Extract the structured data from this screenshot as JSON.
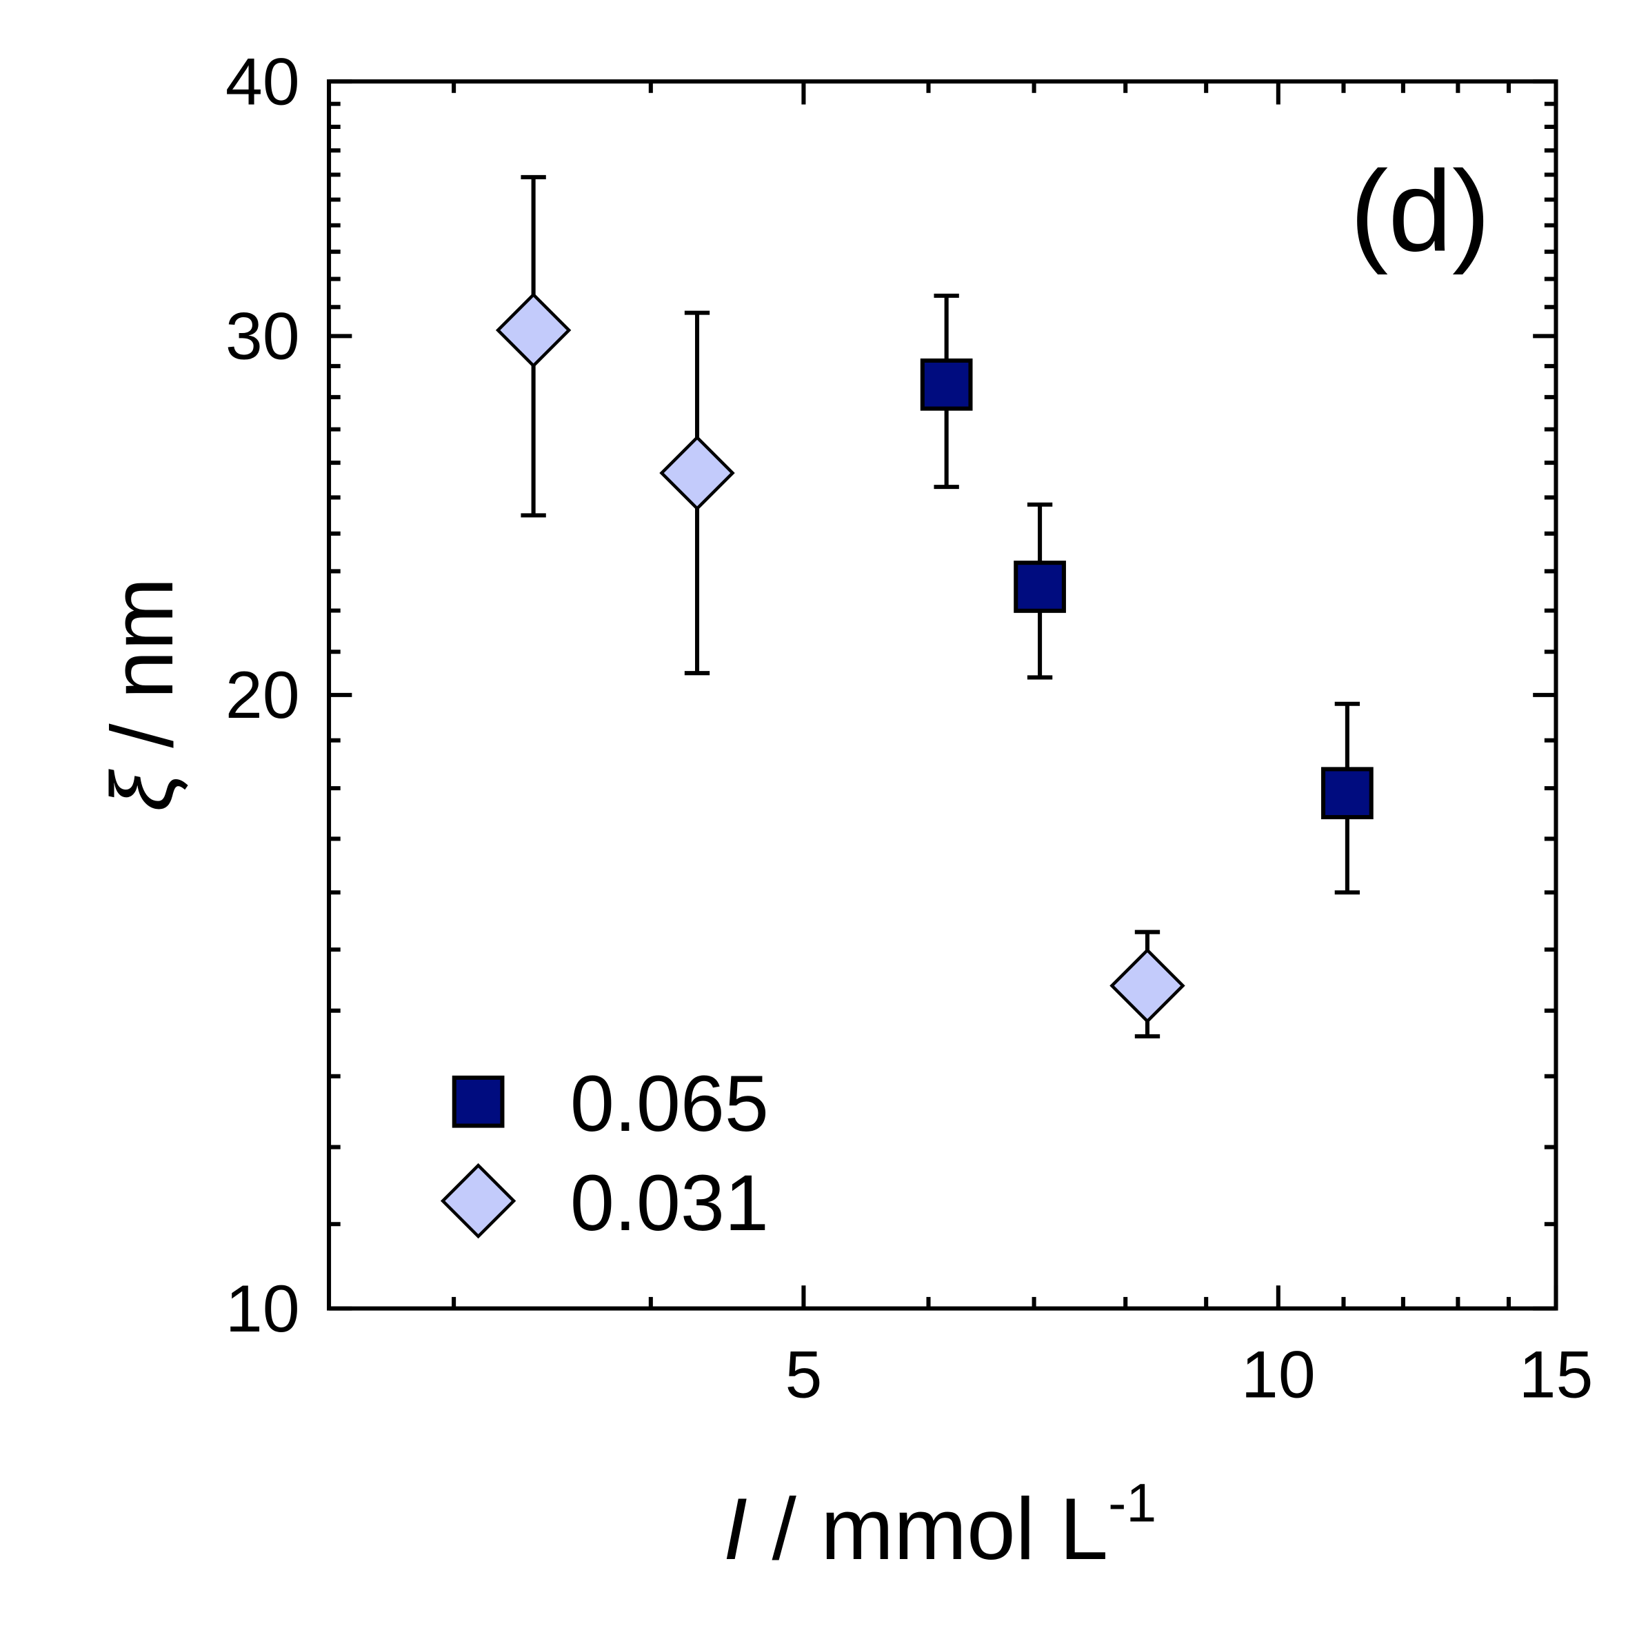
{
  "chart_data": {
    "type": "scatter",
    "annotation": "(d)",
    "xlabel_parts": [
      "I",
      " / mmol L",
      "-1"
    ],
    "ylabel_parts": [
      "ξ",
      " / nm"
    ],
    "xlog": true,
    "ylog": true,
    "xlim": [
      2.5,
      15
    ],
    "ylim": [
      10,
      40
    ],
    "xticks": [
      5,
      10,
      15
    ],
    "yticks": [
      10,
      20,
      30,
      40
    ],
    "xminorticks": [
      3,
      4,
      6,
      7,
      8,
      9,
      11,
      12,
      13,
      14
    ],
    "yminorticks": [
      11,
      12,
      13,
      14,
      15,
      16,
      17,
      18,
      19,
      21,
      22,
      23,
      24,
      25,
      26,
      27,
      28,
      29,
      31,
      32,
      33,
      34,
      35,
      36,
      37,
      38,
      39
    ],
    "legend": "lower left",
    "series": [
      {
        "name": "0.065",
        "marker": "square",
        "color": "#000c7f",
        "x": [
          6.16,
          7.06,
          11.06
        ],
        "values": [
          28.4,
          22.6,
          17.9
        ],
        "ylow": [
          25.3,
          20.4,
          16.0
        ],
        "yhigh": [
          31.4,
          24.8,
          19.8
        ]
      },
      {
        "name": "0.031",
        "marker": "diamond",
        "color": "#c3cbfb",
        "x": [
          3.37,
          4.28,
          8.26
        ],
        "values": [
          30.2,
          25.7,
          14.4
        ],
        "ylow": [
          24.5,
          20.5,
          13.6
        ],
        "yhigh": [
          35.9,
          30.8,
          15.3
        ]
      }
    ]
  }
}
